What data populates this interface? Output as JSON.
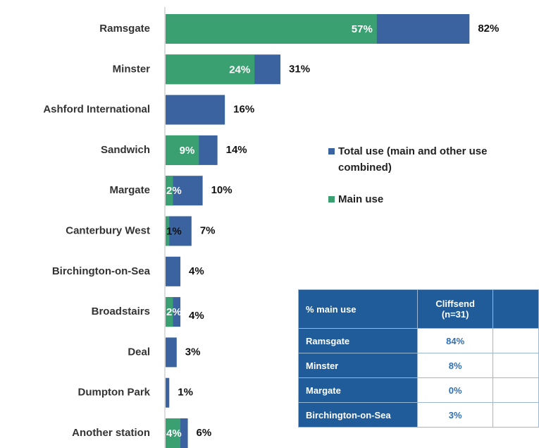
{
  "chart_data": {
    "type": "bar",
    "categories": [
      "Ramsgate",
      "Minster",
      "Ashford International",
      "Sandwich",
      "Margate",
      "Canterbury West",
      "Birchington-on-Sea",
      "Broadstairs",
      "Deal",
      "Dumpton Park",
      "Another station"
    ],
    "series": [
      {
        "name": "Total use (main and other use combined)",
        "color": "#3b63a0",
        "values": [
          82,
          31,
          16,
          14,
          10,
          7,
          4,
          4,
          3,
          1,
          6
        ],
        "value_labels": [
          "82%",
          "31%",
          "16%",
          "14%",
          "10%",
          "7%",
          "4%",
          "4%",
          "3%",
          "1%",
          "6%"
        ]
      },
      {
        "name": "Main use",
        "color": "#3aa071",
        "values": [
          57,
          24,
          null,
          9,
          2,
          1,
          null,
          2,
          null,
          null,
          4
        ],
        "value_labels": [
          "57%",
          "24%",
          null,
          "9%",
          "2%",
          "1%",
          null,
          "2%",
          null,
          null,
          "4%"
        ]
      }
    ]
  },
  "table": {
    "header": [
      "% main use",
      "Cliffsend (n=31)"
    ],
    "rows": [
      [
        "Ramsgate",
        "84%"
      ],
      [
        "Minster",
        "8%"
      ],
      [
        "Margate",
        "0%"
      ],
      [
        "Birchington-on-Sea",
        "3%"
      ]
    ]
  }
}
